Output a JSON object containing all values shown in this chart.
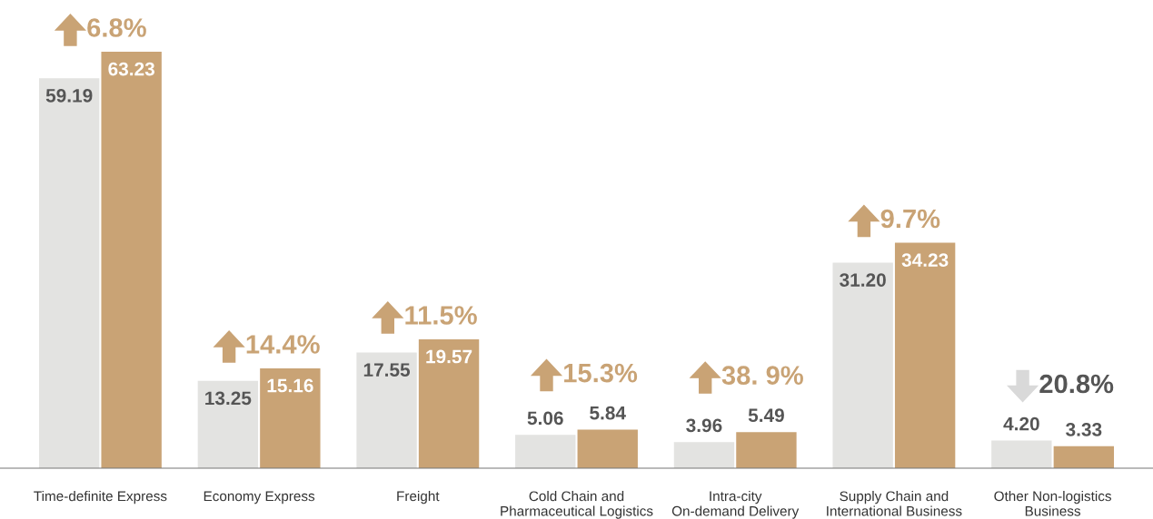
{
  "chart_data": {
    "type": "bar",
    "categories": [
      "Time-definite Express",
      "Economy Express",
      "Freight",
      "Cold Chain and\nPharmaceutical Logistics",
      "Intra-city\nOn-demand Delivery",
      "Supply Chain and\nInternational Business",
      "Other Non-logistics\nBusiness"
    ],
    "series": [
      {
        "color": "#e3e3e1",
        "values": [
          59.19,
          13.25,
          17.55,
          5.06,
          3.96,
          31.2,
          4.2
        ],
        "value_labels": [
          "59.19",
          "13.25",
          "17.55",
          "5.06",
          "3.96",
          "31.20",
          "4.20"
        ]
      },
      {
        "color": "#c9a375",
        "values": [
          63.23,
          15.16,
          19.57,
          5.84,
          5.49,
          34.23,
          3.33
        ],
        "value_labels": [
          "63.23",
          "15.16",
          "19.57",
          "5.84",
          "5.49",
          "34.23",
          "3.33"
        ]
      }
    ],
    "annotations": [
      {
        "text": "6.8%",
        "x": "Time-definite Express",
        "y": 63.23
      },
      {
        "text": "14.4%",
        "x": "Economy Express",
        "y": 15.16
      },
      {
        "text": "11.5%",
        "x": "Freight",
        "y": 19.57
      },
      {
        "text": "15.3%",
        "x": "Cold Chain and\nPharmaceutical Logistics",
        "y": 5.84
      },
      {
        "text": "38. 9%",
        "x": "Intra-city\nOn-demand Delivery",
        "y": 5.49
      },
      {
        "text": "9.7%",
        "x": "Supply Chain and\nInternational Business",
        "y": 34.23
      },
      {
        "text": "20.8%",
        "x": "Other Non-logistics\nBusiness",
        "y": 4.2
      }
    ],
    "grid": false,
    "legend": false
  }
}
